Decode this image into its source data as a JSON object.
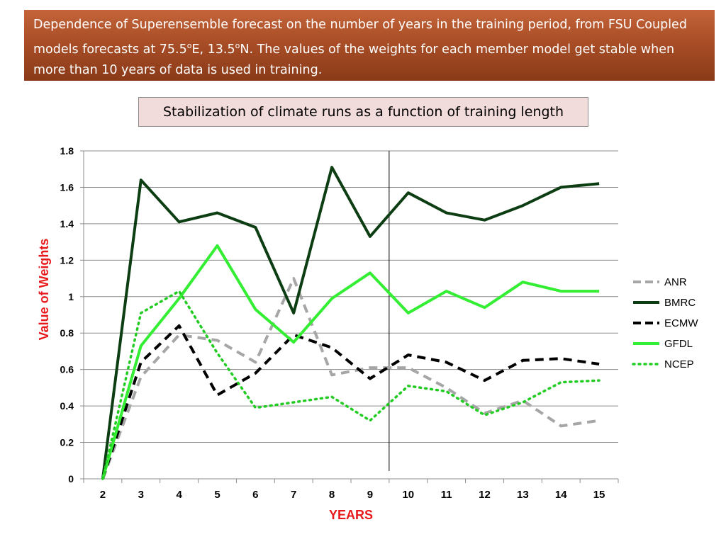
{
  "banner": {
    "text_before_deg1": "Dependence of Superensemble forecast on the number of years in the training period, from FSU Coupled models forecasts at 75.5",
    "deg1": "o",
    "text_between": "E, 13.5",
    "deg2": "o",
    "text_after": "N. The values of the weights for each member model get stable when more than 10 years of data is used in training."
  },
  "chart_data": {
    "type": "line",
    "title": "Stabilization of climate runs as a function of training length",
    "xlabel": "YEARS",
    "ylabel": "Value of Weights",
    "categories": [
      "2",
      "3",
      "4",
      "5",
      "6",
      "7",
      "8",
      "9",
      "10",
      "11",
      "12",
      "13",
      "14",
      "15"
    ],
    "ylim": [
      0,
      1.8
    ],
    "yticks": [
      "0",
      "0.2",
      "0.4",
      "0.6",
      "0.8",
      "1",
      "1.2",
      "1.4",
      "1.6",
      "1.8"
    ],
    "grid": true,
    "legend_position": "right",
    "marker_line_between": [
      "9",
      "10"
    ],
    "series": [
      {
        "name": "ANR",
        "color": "#a6a6a6",
        "style": "dashed",
        "values": [
          0,
          0.56,
          0.79,
          0.76,
          0.64,
          1.1,
          0.57,
          0.61,
          0.61,
          0.5,
          0.36,
          0.43,
          0.29,
          0.32
        ]
      },
      {
        "name": "BMRC",
        "color": "#0d3d12",
        "style": "solid",
        "values": [
          0,
          1.64,
          1.41,
          1.46,
          1.38,
          0.91,
          1.71,
          1.33,
          1.57,
          1.46,
          1.42,
          1.5,
          1.6,
          1.62
        ]
      },
      {
        "name": "ECMW",
        "color": "#000000",
        "style": "dashed",
        "values": [
          0,
          0.64,
          0.84,
          0.46,
          0.58,
          0.79,
          0.72,
          0.55,
          0.68,
          0.64,
          0.54,
          0.65,
          0.66,
          0.63
        ]
      },
      {
        "name": "GFDL",
        "color": "#33ee33",
        "style": "solid",
        "values": [
          0,
          0.73,
          0.99,
          1.28,
          0.93,
          0.75,
          0.99,
          1.13,
          0.91,
          1.03,
          0.94,
          1.08,
          1.03,
          1.03
        ]
      },
      {
        "name": "NCEP",
        "color": "#22cc22",
        "style": "dotted",
        "values": [
          0,
          0.91,
          1.03,
          0.69,
          0.39,
          0.42,
          0.45,
          0.32,
          0.51,
          0.48,
          0.35,
          0.42,
          0.53,
          0.54
        ]
      }
    ]
  }
}
